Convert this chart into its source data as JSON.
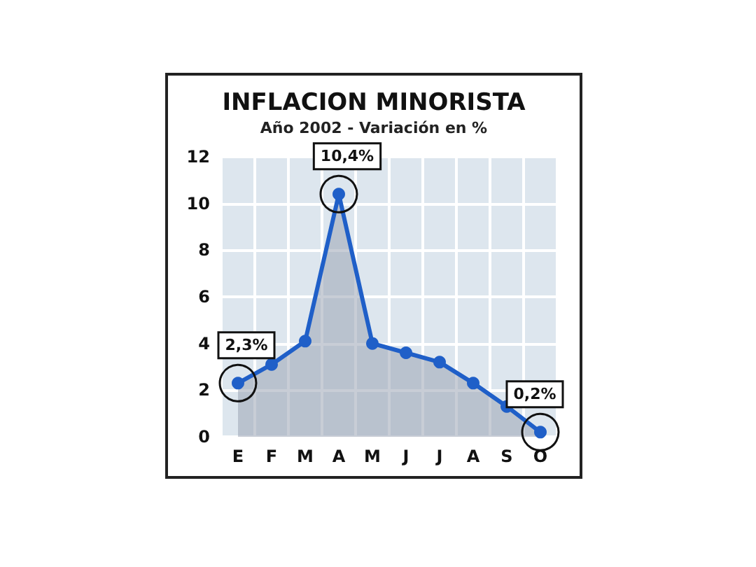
{
  "chart_data": {
    "type": "area",
    "title": "INFLACION MINORISTA",
    "subtitle": "Año 2002 - Variación en %",
    "categories": [
      "E",
      "F",
      "M",
      "A",
      "M",
      "J",
      "J",
      "A",
      "S",
      "O"
    ],
    "series": [
      {
        "color": "#1f5fc8",
        "values": [
          2.3,
          3.1,
          4.1,
          10.4,
          4.0,
          3.6,
          3.2,
          2.3,
          1.3,
          0.2
        ]
      }
    ],
    "ylim": [
      0,
      12
    ],
    "yticks": [
      0,
      2,
      4,
      6,
      8,
      10,
      12
    ],
    "grid": true,
    "marker": "circle",
    "line_style": "solid",
    "annotations": [
      {
        "text": "2,3%",
        "x": "E",
        "y": 2.3
      },
      {
        "text": "10,4%",
        "x": "A",
        "y": 10.4
      },
      {
        "text": "0,2%",
        "x": "O",
        "y": 0.2
      }
    ]
  }
}
